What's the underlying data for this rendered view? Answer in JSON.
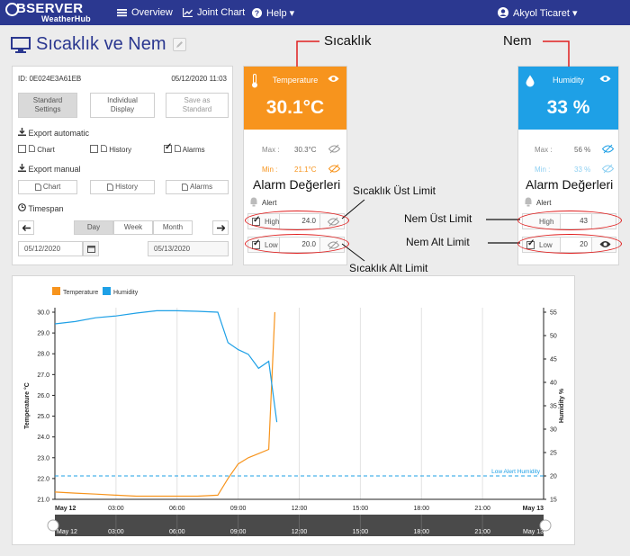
{
  "nav": {
    "brand_top": "BSERVER",
    "brand_bottom": "WeatherHub",
    "items": [
      {
        "label": "Overview",
        "icon": "menu-icon"
      },
      {
        "label": "Joint Chart",
        "icon": "line-chart-icon"
      },
      {
        "label": "Help ▾",
        "icon": "question-icon"
      }
    ],
    "user": "Akyol Ticaret ▾"
  },
  "page": {
    "title": "Sıcaklık ve Nem"
  },
  "controls": {
    "device_id": "ID: 0E024E3A61EB",
    "datetime": "05/12/2020  11:03",
    "standard_settings": [
      "Standard",
      "Settings"
    ],
    "individual_display": [
      "Individual",
      "Display"
    ],
    "save_as_standard": [
      "Save as",
      "Standard"
    ],
    "export_automatic": "Export automatic",
    "auto_chart": "Chart",
    "auto_history": "History",
    "auto_alarms": "Alarms",
    "export_manual": "Export manual",
    "manual_chart": "Chart",
    "manual_history": "History",
    "manual_alarms": "Alarms",
    "timespan": "Timespan",
    "day": "Day",
    "week": "Week",
    "month": "Month",
    "date_from": "05/12/2020",
    "date_to": "05/13/2020"
  },
  "temperature": {
    "label": "Temperature",
    "value": "30.1°C",
    "max_label": "Max :",
    "max_value": "30.3°C",
    "min_label": "Min :",
    "min_value": "21.1°C",
    "alert": "Alert",
    "high_label": "High",
    "high_value": "24.0",
    "low_label": "Low",
    "low_value": "20.0",
    "color": "#f7941d"
  },
  "humidity": {
    "label": "Humidity",
    "value": "33 %",
    "max_label": "Max :",
    "max_value": "56 %",
    "min_label": "Min :",
    "min_value": "33 %",
    "alert": "Alert",
    "high_label": "High",
    "high_value": "43",
    "low_label": "Low",
    "low_value": "20",
    "color": "#1ea0e6"
  },
  "annotations": {
    "sicaklik": "Sıcaklık",
    "nem": "Nem",
    "alarm_degerleri": "Alarm Değerleri",
    "alarm_degerleri_2": "Alarm Değerleri",
    "sicaklik_ust_limit": "Sıcaklık Üst Limit",
    "sicaklik_alt_limit": "Sıcaklık Alt Limit",
    "nem_ust_limit": "Nem Üst Limit",
    "nem_alt_limit": "Nem Alt Limit"
  },
  "chart_data": {
    "type": "line",
    "legend": [
      "Temperature",
      "Humidity"
    ],
    "ylabel_left": "Temperature °C",
    "ylabel_right": "Humidity %",
    "ylim_left": [
      21.0,
      30.0
    ],
    "ylim_right": [
      15,
      55
    ],
    "yticks_left": [
      "21.0",
      "22.0",
      "23.0",
      "24.0",
      "25.0",
      "26.0",
      "27.0",
      "28.0",
      "29.0",
      "30.0"
    ],
    "yticks_right": [
      "15",
      "20",
      "25",
      "30",
      "35",
      "40",
      "45",
      "50",
      "55"
    ],
    "xticks": [
      "May 12",
      "03:00",
      "06:00",
      "09:00",
      "12:00",
      "15:00",
      "18:00",
      "21:00",
      "May 13"
    ],
    "xlim_hours": [
      0,
      24
    ],
    "series": [
      {
        "name": "Temperature",
        "color": "#f7941d",
        "x": [
          0.0,
          1.0,
          2.0,
          3.0,
          4.0,
          5.0,
          6.0,
          7.0,
          8.0,
          8.5,
          9.0,
          9.5,
          10.0,
          10.5,
          10.8
        ],
        "y": [
          21.35,
          21.3,
          21.25,
          21.2,
          21.15,
          21.15,
          21.15,
          21.15,
          21.2,
          22.0,
          22.7,
          23.0,
          23.2,
          23.4,
          30.0
        ]
      },
      {
        "name": "Humidity",
        "color": "#1ea0e6",
        "x": [
          0.0,
          1.0,
          2.0,
          3.0,
          4.0,
          5.0,
          6.0,
          7.0,
          8.0,
          8.5,
          9.0,
          9.5,
          10.0,
          10.5,
          10.9
        ],
        "y": [
          52.5,
          53.0,
          53.8,
          54.2,
          54.8,
          55.3,
          55.3,
          55.2,
          55.0,
          48.5,
          47.0,
          46.0,
          43.0,
          44.5,
          31.5
        ]
      }
    ],
    "threshold": {
      "label": "Low Alert Humidity",
      "value": 20,
      "axis": "right",
      "color": "#1ea0e6"
    }
  }
}
